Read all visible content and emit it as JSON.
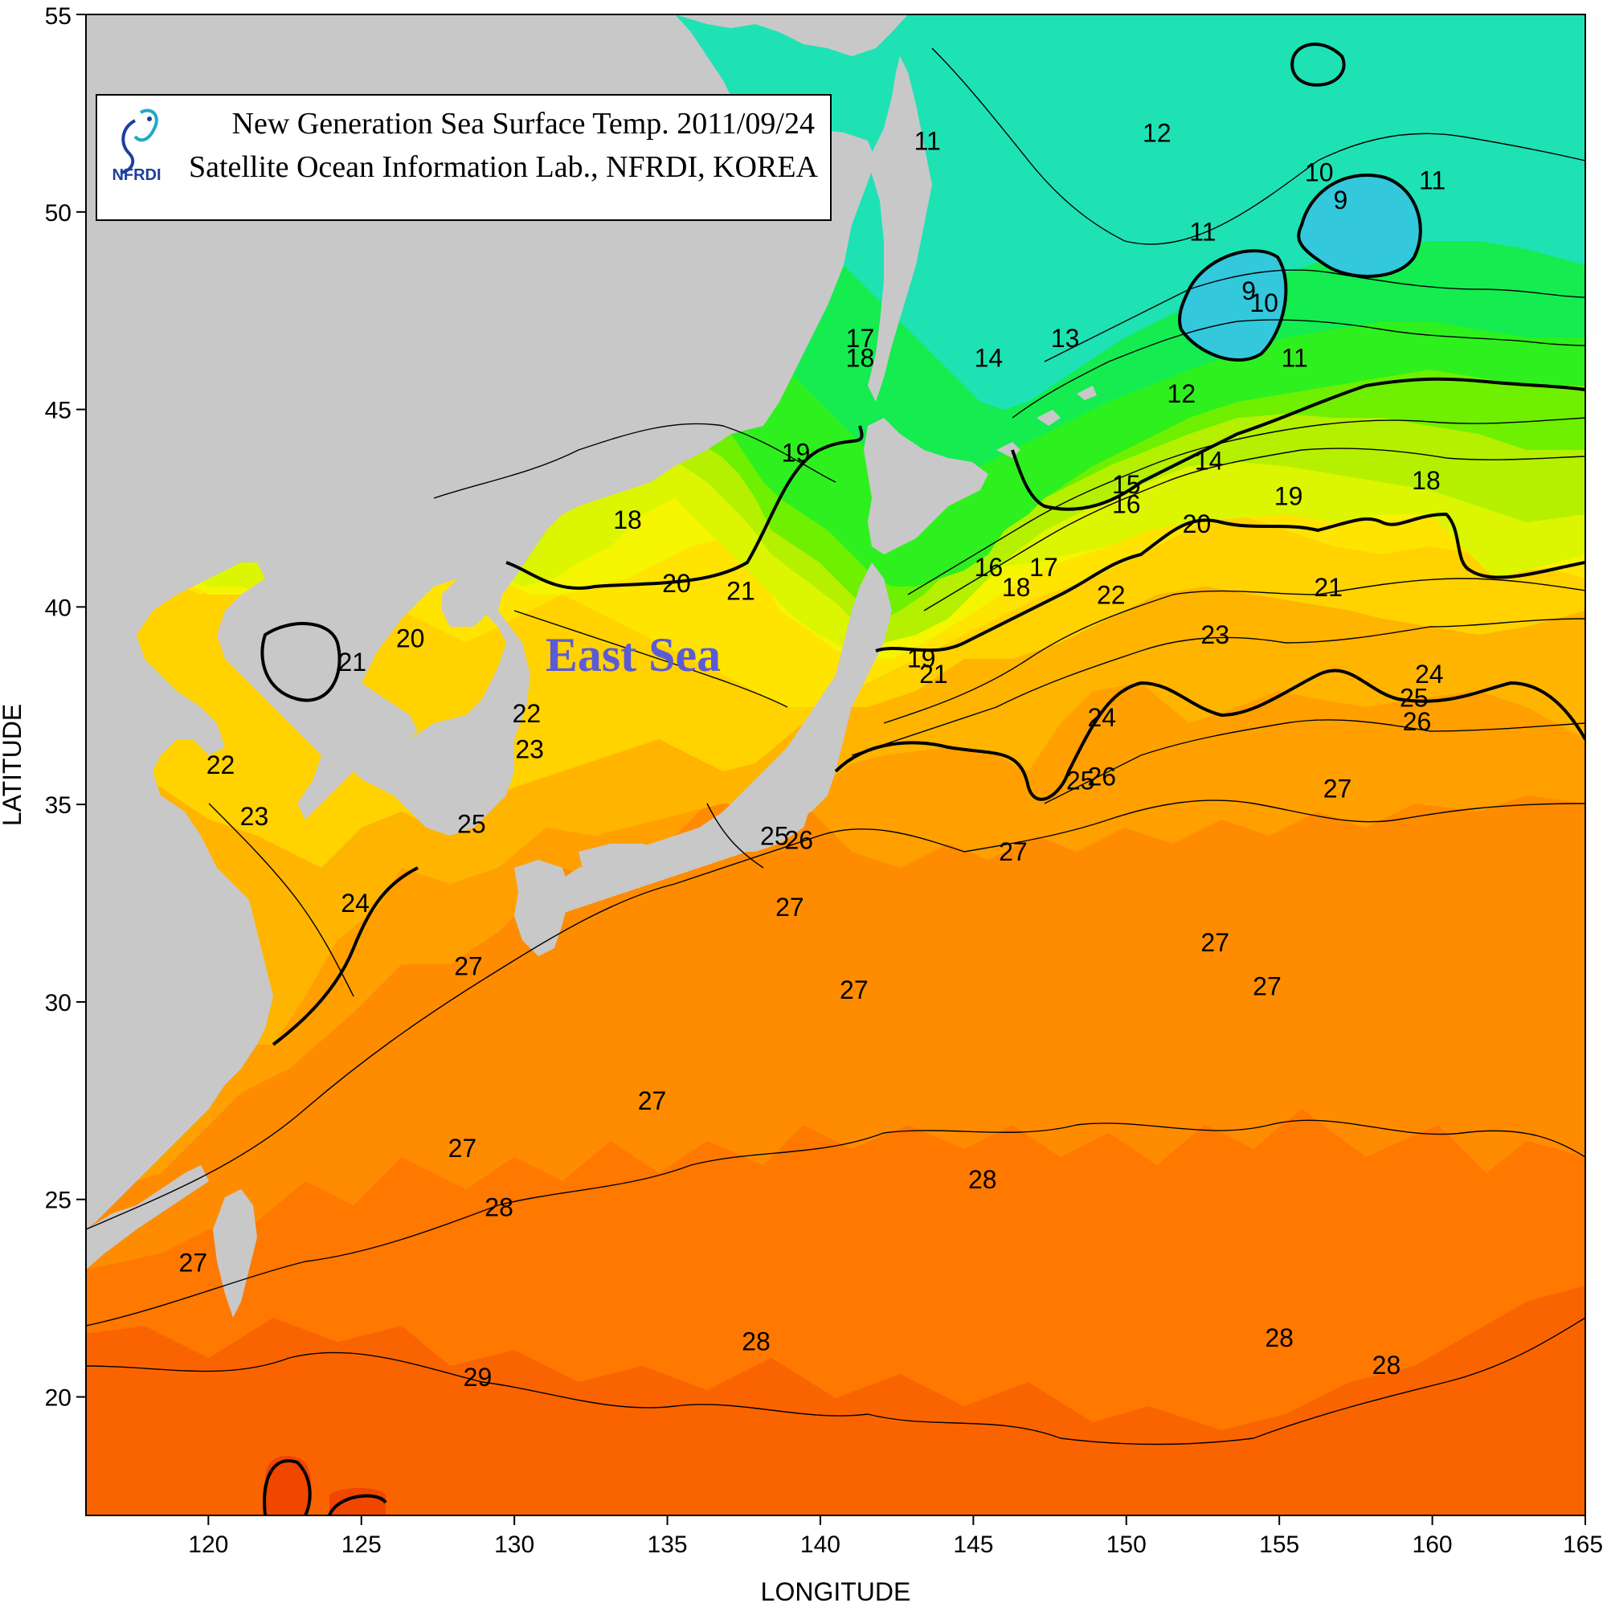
{
  "title": {
    "line1": "New Generation Sea Surface Temp. 2011/09/24",
    "line2": "Satellite Ocean Information Lab., NFRDI, KOREA",
    "logo_text": "NFRDI"
  },
  "axes": {
    "xlabel": "LONGITUDE",
    "ylabel": "LATITUDE",
    "x_ticks": [
      "120",
      "125",
      "130",
      "135",
      "140",
      "145",
      "150",
      "155",
      "160",
      "165"
    ],
    "y_ticks": [
      "20",
      "25",
      "30",
      "35",
      "40",
      "45",
      "50",
      "55"
    ],
    "xlim": [
      116,
      165
    ],
    "ylim": [
      17,
      55
    ]
  },
  "region_label": "East Sea",
  "colors": {
    "land": "#c8c8c8",
    "t9": "#33c8dc",
    "t11": "#1ee2b4",
    "t13": "#14ec50",
    "t16": "#2ef01e",
    "t18": "#6ef000",
    "t19": "#b4f000",
    "t20": "#dcf500",
    "t21": "#f5f500",
    "t22": "#ffe400",
    "t23": "#ffd200",
    "t24": "#ffb400",
    "t25": "#ffa000",
    "t27": "#ff8c00",
    "t28": "#ff7800",
    "t29": "#fa6400",
    "t30": "#f04600"
  },
  "contour_labels": [
    {
      "text": "12",
      "lon": 151,
      "lat": 52
    },
    {
      "text": "11",
      "lon": 143.5,
      "lat": 51.8
    },
    {
      "text": "11",
      "lon": 152.5,
      "lat": 49.5
    },
    {
      "text": "11",
      "lon": 160,
      "lat": 50.8
    },
    {
      "text": "11",
      "lon": 155.5,
      "lat": 46.3
    },
    {
      "text": "10",
      "lon": 156.3,
      "lat": 51
    },
    {
      "text": "9",
      "lon": 157,
      "lat": 50.3
    },
    {
      "text": "10",
      "lon": 154.5,
      "lat": 47.7
    },
    {
      "text": "9",
      "lon": 154,
      "lat": 48
    },
    {
      "text": "13",
      "lon": 148,
      "lat": 46.8
    },
    {
      "text": "12",
      "lon": 151.8,
      "lat": 45.4
    },
    {
      "text": "14",
      "lon": 145.5,
      "lat": 46.3
    },
    {
      "text": "14",
      "lon": 152.7,
      "lat": 43.7
    },
    {
      "text": "15",
      "lon": 150,
      "lat": 43.1
    },
    {
      "text": "16",
      "lon": 150,
      "lat": 42.6
    },
    {
      "text": "16",
      "lon": 145.5,
      "lat": 41
    },
    {
      "text": "17",
      "lon": 147.3,
      "lat": 41
    },
    {
      "text": "18",
      "lon": 146.4,
      "lat": 40.5
    },
    {
      "text": "18",
      "lon": 159.8,
      "lat": 43.2
    },
    {
      "text": "19",
      "lon": 155.3,
      "lat": 42.8
    },
    {
      "text": "20",
      "lon": 152.3,
      "lat": 42.1
    },
    {
      "text": "17",
      "lon": 141.3,
      "lat": 46.8
    },
    {
      "text": "18",
      "lon": 141.3,
      "lat": 46.3
    },
    {
      "text": "19",
      "lon": 139.2,
      "lat": 43.9
    },
    {
      "text": "18",
      "lon": 133.7,
      "lat": 42.2
    },
    {
      "text": "20",
      "lon": 135.3,
      "lat": 40.6
    },
    {
      "text": "21",
      "lon": 137.4,
      "lat": 40.4
    },
    {
      "text": "19",
      "lon": 143.3,
      "lat": 38.7
    },
    {
      "text": "21",
      "lon": 143.7,
      "lat": 38.3
    },
    {
      "text": "22",
      "lon": 149.5,
      "lat": 40.3
    },
    {
      "text": "23",
      "lon": 152.9,
      "lat": 39.3
    },
    {
      "text": "21",
      "lon": 156.6,
      "lat": 40.5
    },
    {
      "text": "24",
      "lon": 149.2,
      "lat": 37.2
    },
    {
      "text": "24",
      "lon": 159.9,
      "lat": 38.3
    },
    {
      "text": "25",
      "lon": 159.4,
      "lat": 37.7
    },
    {
      "text": "26",
      "lon": 159.5,
      "lat": 37.1
    },
    {
      "text": "25",
      "lon": 148.5,
      "lat": 35.6
    },
    {
      "text": "26",
      "lon": 149.2,
      "lat": 35.7
    },
    {
      "text": "27",
      "lon": 156.9,
      "lat": 35.4
    },
    {
      "text": "20",
      "lon": 126.6,
      "lat": 39.2
    },
    {
      "text": "21",
      "lon": 124.7,
      "lat": 38.6
    },
    {
      "text": "22",
      "lon": 130.4,
      "lat": 37.3
    },
    {
      "text": "23",
      "lon": 130.5,
      "lat": 36.4
    },
    {
      "text": "22",
      "lon": 120.4,
      "lat": 36
    },
    {
      "text": "23",
      "lon": 121.5,
      "lat": 34.7
    },
    {
      "text": "24",
      "lon": 124.8,
      "lat": 32.5
    },
    {
      "text": "25",
      "lon": 128.6,
      "lat": 34.5
    },
    {
      "text": "25",
      "lon": 138.5,
      "lat": 34.2
    },
    {
      "text": "26",
      "lon": 139.3,
      "lat": 34.1
    },
    {
      "text": "27",
      "lon": 139,
      "lat": 32.4
    },
    {
      "text": "27",
      "lon": 146.3,
      "lat": 33.8
    },
    {
      "text": "27",
      "lon": 128.5,
      "lat": 30.9
    },
    {
      "text": "27",
      "lon": 141.1,
      "lat": 30.3
    },
    {
      "text": "27",
      "lon": 152.9,
      "lat": 31.5
    },
    {
      "text": "27",
      "lon": 154.6,
      "lat": 30.4
    },
    {
      "text": "27",
      "lon": 134.5,
      "lat": 27.5
    },
    {
      "text": "27",
      "lon": 128.3,
      "lat": 26.3
    },
    {
      "text": "27",
      "lon": 119.5,
      "lat": 23.4
    },
    {
      "text": "28",
      "lon": 145.3,
      "lat": 25.5
    },
    {
      "text": "28",
      "lon": 129.5,
      "lat": 24.8
    },
    {
      "text": "28",
      "lon": 137.9,
      "lat": 21.4
    },
    {
      "text": "28",
      "lon": 155,
      "lat": 21.5
    },
    {
      "text": "28",
      "lon": 158.5,
      "lat": 20.8
    },
    {
      "text": "29",
      "lon": 128.8,
      "lat": 20.5
    }
  ]
}
